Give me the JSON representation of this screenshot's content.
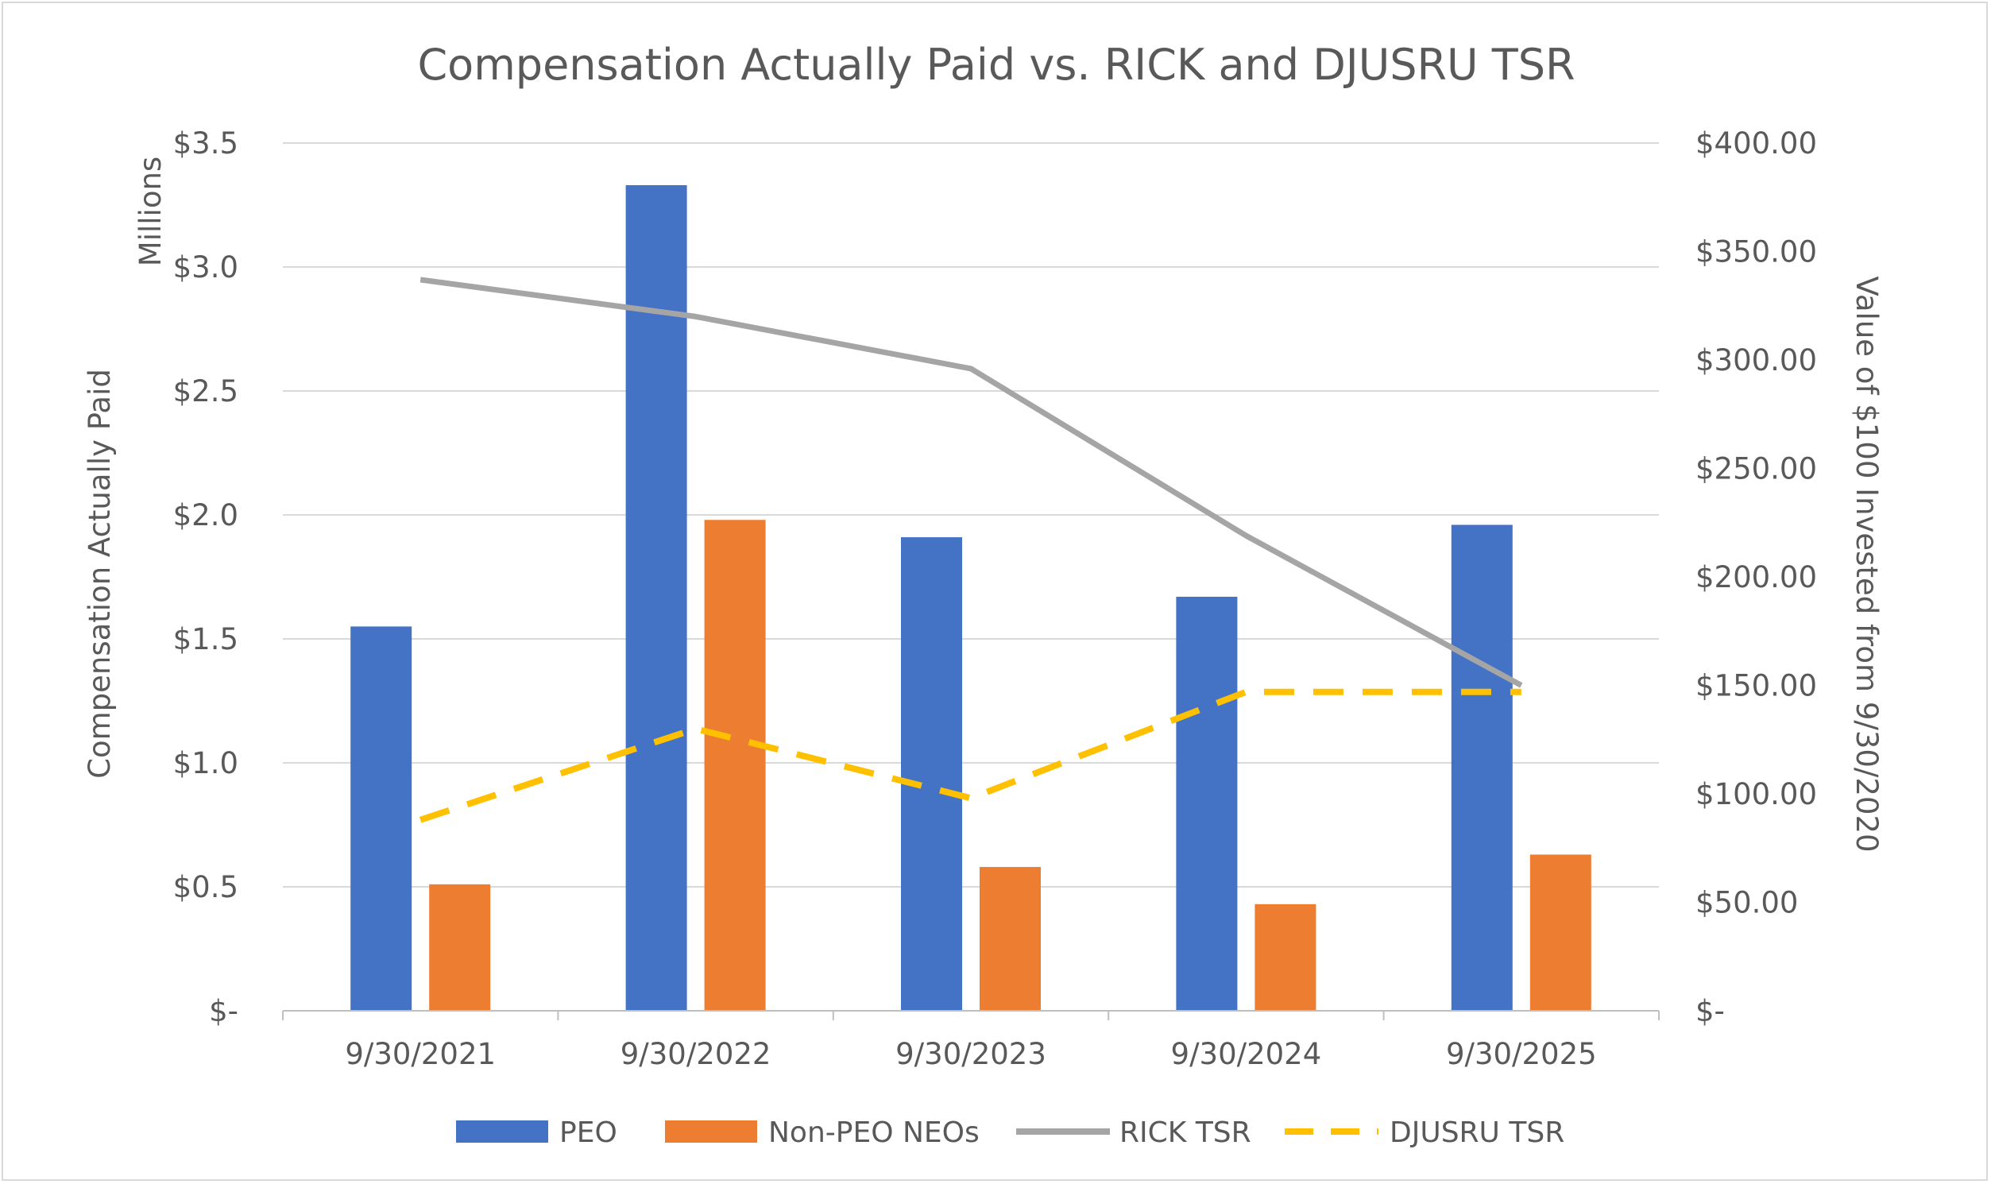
{
  "chart_data": {
    "type": "bar",
    "title": "Compensation Actually Paid vs. RICK and DJUSRU TSR",
    "categories": [
      "9/30/2021",
      "9/30/2022",
      "9/30/2023",
      "9/30/2024",
      "9/30/2025"
    ],
    "ylabel": "Compensation Actually Paid",
    "ylabel_units": "Millions",
    "y2label": "Value of $100 Invested from 9/30/2020",
    "ylim": [
      0,
      3.5
    ],
    "y2lim": [
      0,
      400
    ],
    "yticks": [
      0,
      0.5,
      1.0,
      1.5,
      2.0,
      2.5,
      3.0,
      3.5
    ],
    "ytick_labels": [
      "$-",
      "$0.5",
      "$1.0",
      "$1.5",
      "$2.0",
      "$2.5",
      "$3.0",
      "$3.5"
    ],
    "y2ticks": [
      0,
      50,
      100,
      150,
      200,
      250,
      300,
      350,
      400
    ],
    "y2tick_labels": [
      "$-",
      "$50.00",
      "$100.00",
      "$150.00",
      "$200.00",
      "$250.00",
      "$300.00",
      "$350.00",
      "$400.00"
    ],
    "grid": true,
    "legend_position": "bottom",
    "series": [
      {
        "name": "PEO",
        "type": "bar",
        "axis": "left",
        "color": "#4472C4",
        "values": [
          1.55,
          3.33,
          1.91,
          1.67,
          1.96
        ]
      },
      {
        "name": "Non-PEO NEOs",
        "type": "bar",
        "axis": "left",
        "color": "#ED7D31",
        "values": [
          0.51,
          1.98,
          0.58,
          0.43,
          0.63
        ]
      },
      {
        "name": "RICK TSR",
        "type": "line",
        "axis": "right",
        "color": "#A5A5A5",
        "dashed": false,
        "values": [
          337,
          320,
          296,
          219,
          150
        ]
      },
      {
        "name": "DJUSRU TSR",
        "type": "line",
        "axis": "right",
        "color": "#FFC000",
        "dashed": true,
        "values": [
          88,
          130,
          98,
          147,
          147
        ]
      }
    ]
  }
}
